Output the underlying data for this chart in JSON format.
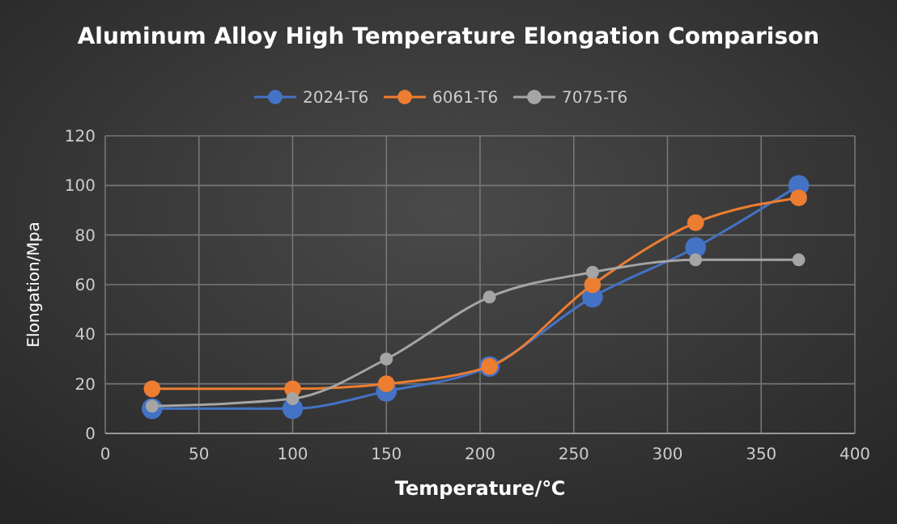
{
  "chart_data": {
    "type": "line",
    "title": "Aluminum Alloy High Temperature Elongation Comparison",
    "xlabel": "Temperature/℃",
    "ylabel": "Elongation/Mpa",
    "x": [
      25,
      100,
      150,
      205,
      260,
      315,
      370
    ],
    "series": [
      {
        "name": "2024-T6",
        "color": "#4472c4",
        "values": [
          10,
          10,
          17,
          27,
          55,
          75,
          100
        ]
      },
      {
        "name": "6061-T6",
        "color": "#ed7d31",
        "values": [
          18,
          18,
          20,
          27,
          60,
          85,
          95
        ]
      },
      {
        "name": "7075-T6",
        "color": "#a5a5a5",
        "values": [
          11,
          14,
          30,
          55,
          65,
          70,
          70
        ]
      }
    ],
    "xlim": [
      0,
      400
    ],
    "xticks": [
      0,
      50,
      100,
      150,
      200,
      250,
      300,
      350,
      400
    ],
    "ylim": [
      0,
      120
    ],
    "yticks": [
      0,
      20,
      40,
      60,
      80,
      100,
      120
    ],
    "grid": true,
    "legend": "top",
    "marker": "circle",
    "line_style": "solid"
  }
}
